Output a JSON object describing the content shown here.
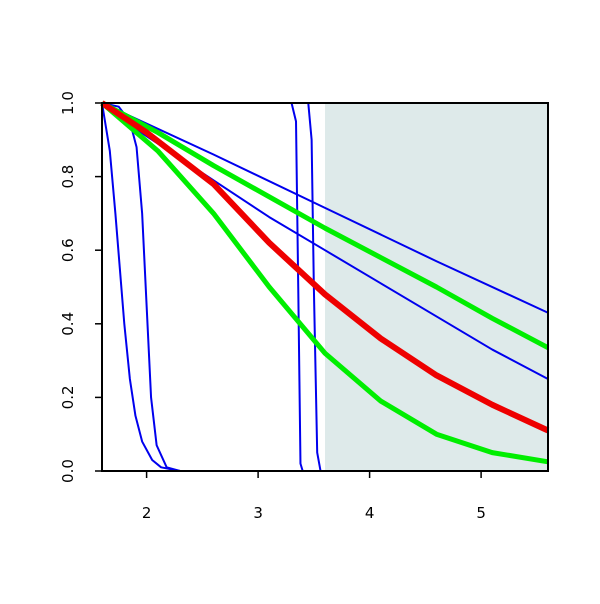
{
  "chart_data": {
    "type": "line",
    "xlim": [
      1.6,
      5.6
    ],
    "ylim": [
      0,
      1
    ],
    "xticks": [
      2,
      3,
      4,
      5
    ],
    "yticks": [
      {
        "value": 0,
        "label": "0.0"
      },
      {
        "value": 0.2,
        "label": "0.2"
      },
      {
        "value": 0.4,
        "label": "0.4"
      },
      {
        "value": 0.6,
        "label": "0.6"
      },
      {
        "value": 0.8,
        "label": "0.8"
      },
      {
        "value": 1,
        "label": "1.0"
      }
    ],
    "shaded_region": {
      "xlim": [
        3.6,
        5.6
      ],
      "color": "#deeaea"
    },
    "series": [
      {
        "color": "#0000ee",
        "width": 2,
        "x": [
          1.6,
          2.6,
          3.6,
          4.6,
          5.6
        ],
        "values": [
          1,
          0.86,
          0.715,
          0.57,
          0.43
        ]
      },
      {
        "color": "#0000ee",
        "width": 2,
        "x": [
          1.6,
          1.8,
          2.1,
          2.6,
          3.1,
          3.6,
          4.1,
          4.6,
          5.1,
          5.6
        ],
        "values": [
          1,
          0.95,
          0.89,
          0.79,
          0.69,
          0.6,
          0.51,
          0.42,
          0.33,
          0.25
        ]
      },
      {
        "color": "#0000ee",
        "width": 2,
        "x": [
          1.6,
          1.67,
          1.72,
          1.76,
          1.8,
          1.85,
          1.9,
          1.96,
          2.05,
          2.13,
          2.3,
          5.6
        ],
        "values": [
          1,
          0.87,
          0.7,
          0.55,
          0.4,
          0.25,
          0.15,
          0.08,
          0.03,
          0.01,
          0,
          0
        ]
      },
      {
        "color": "#0000ee",
        "width": 2,
        "x": [
          1.6,
          1.75,
          1.85,
          1.91,
          1.96,
          2.0,
          2.04,
          2.09,
          2.18,
          2.3,
          5.6
        ],
        "values": [
          1,
          0.99,
          0.95,
          0.88,
          0.7,
          0.45,
          0.2,
          0.07,
          0.01,
          0,
          0
        ]
      },
      {
        "color": "#0000ee",
        "width": 2,
        "x": [
          1.6,
          3.3,
          3.34,
          3.36,
          3.38,
          3.4,
          5.6
        ],
        "values": [
          1,
          1,
          0.95,
          0.5,
          0.02,
          0,
          0
        ]
      },
      {
        "color": "#0000ee",
        "width": 2,
        "x": [
          1.6,
          3.45,
          3.48,
          3.5,
          3.53,
          3.56,
          5.6
        ],
        "values": [
          1,
          1,
          0.9,
          0.5,
          0.05,
          0,
          0
        ]
      },
      {
        "color": "#00ee00",
        "width": 5,
        "x": [
          1.6,
          2.1,
          2.6,
          3.1,
          3.6,
          4.1,
          4.6,
          5.1,
          5.6
        ],
        "values": [
          1,
          0.92,
          0.83,
          0.745,
          0.66,
          0.58,
          0.5,
          0.415,
          0.335
        ]
      },
      {
        "color": "#00ee00",
        "width": 5,
        "x": [
          1.6,
          2.1,
          2.6,
          3.1,
          3.6,
          4.1,
          4.6,
          5.1,
          5.6
        ],
        "values": [
          1,
          0.87,
          0.7,
          0.5,
          0.32,
          0.19,
          0.1,
          0.05,
          0.025
        ]
      },
      {
        "color": "#ee0000",
        "width": 6,
        "x": [
          1.6,
          2.0,
          2.6,
          3.1,
          3.6,
          4.1,
          4.6,
          5.1,
          5.6
        ],
        "values": [
          1,
          0.92,
          0.78,
          0.62,
          0.48,
          0.36,
          0.26,
          0.18,
          0.11
        ]
      }
    ]
  }
}
